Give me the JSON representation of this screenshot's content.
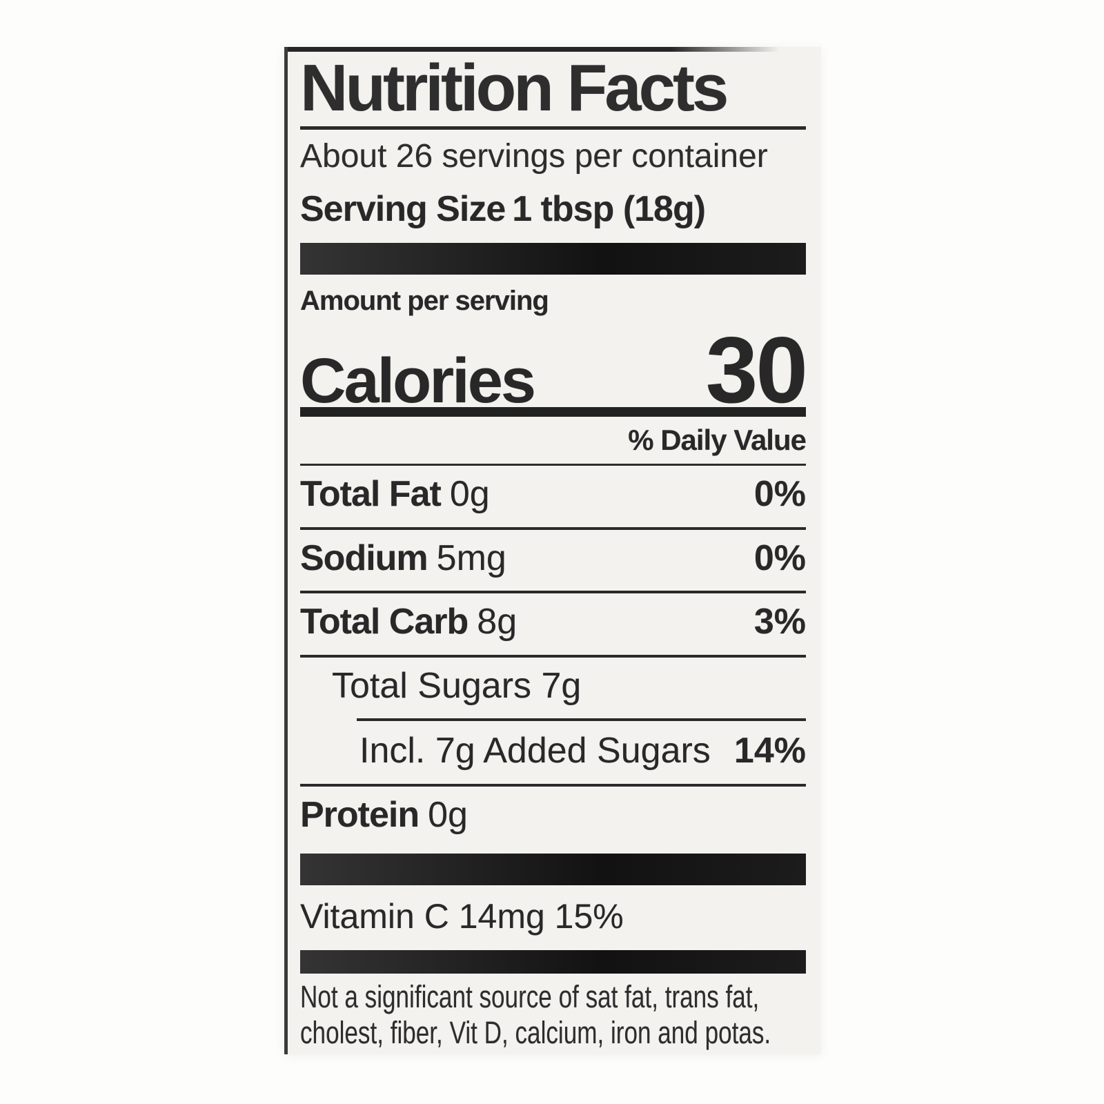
{
  "colors": {
    "label_bg": "#f3f2ef",
    "page_bg": "#fdfdfc",
    "ink": "#2a2a2a",
    "bar": "#1c1c1c"
  },
  "label": {
    "title": "Nutrition Facts",
    "servings_line": "About 26 servings per container",
    "serving_size_label": "Serving Size",
    "serving_size_value": "1 tbsp (18g)",
    "amount_per_serving": "Amount per serving",
    "calories_label": "Calories",
    "calories_value": "30",
    "daily_value_header": "% Daily Value",
    "rows": [
      {
        "name": "Total Fat",
        "amount": "0g",
        "dv": "0%"
      },
      {
        "name": "Sodium",
        "amount": "5mg",
        "dv": "0%"
      },
      {
        "name": "Total Carb",
        "amount": "8g",
        "dv": "3%"
      },
      {
        "name": "",
        "amount": "Total Sugars 7g",
        "dv": ""
      },
      {
        "name": "",
        "amount": "Incl. 7g Added Sugars",
        "dv": "14%"
      },
      {
        "name": "Protein",
        "amount": "0g",
        "dv": ""
      }
    ],
    "micronutrient_line": "Vitamin C 14mg 15%",
    "footnote_line1": "Not a significant source of sat fat, trans fat,",
    "footnote_line2": "cholest, fiber, Vit D, calcium, iron and potas."
  }
}
